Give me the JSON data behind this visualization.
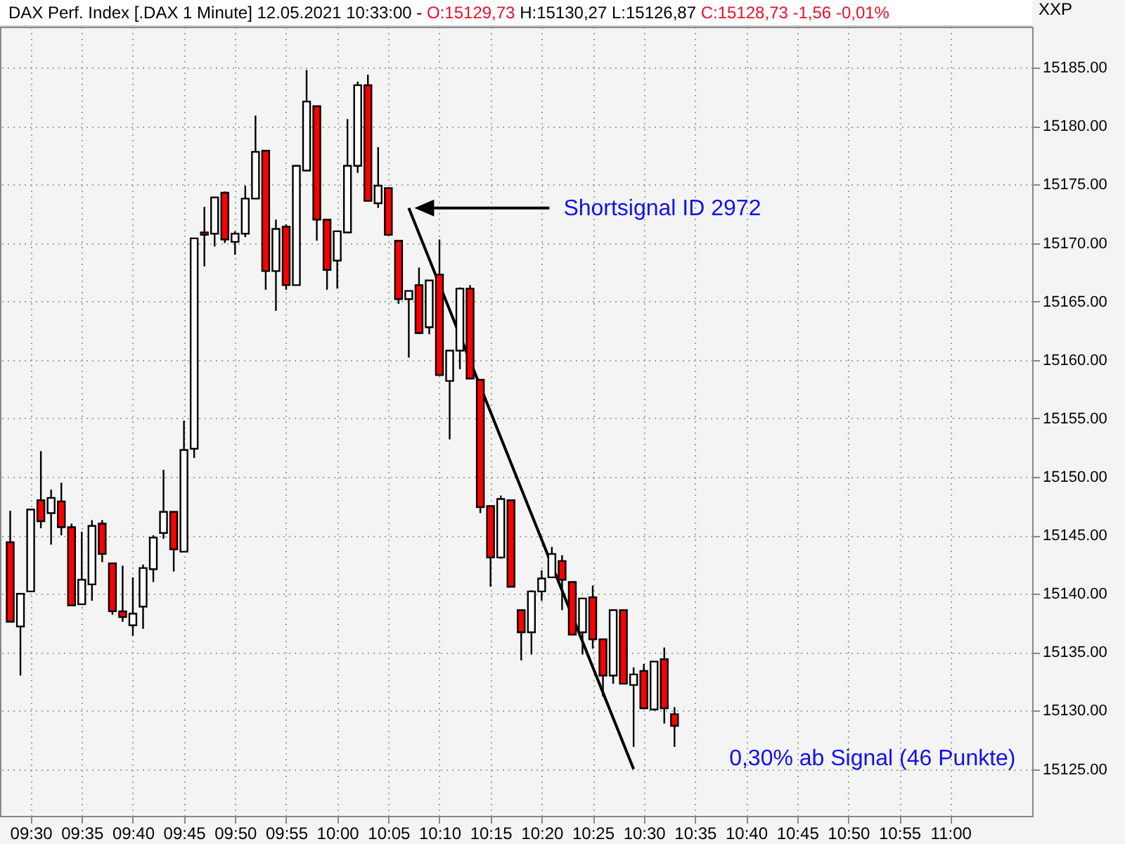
{
  "chart_data": {
    "type": "candlestick",
    "title": "DAX Perf. Index [.DAX  1 Minute] 12.05.2021 10:33:00 -",
    "subtitle": "O:15129,73 H:15130,27 L:15126,87 C:15128,73 -1,56 -0,01%",
    "ylabel": "XXP",
    "x": [
      "2021-05-12T09:28",
      "2021-05-12T09:29",
      "2021-05-12T09:30",
      "2021-05-12T09:31",
      "2021-05-12T09:32",
      "2021-05-12T09:33",
      "2021-05-12T09:34",
      "2021-05-12T09:35",
      "2021-05-12T09:36",
      "2021-05-12T09:37",
      "2021-05-12T09:38",
      "2021-05-12T09:39",
      "2021-05-12T09:40",
      "2021-05-12T09:41",
      "2021-05-12T09:42",
      "2021-05-12T09:43",
      "2021-05-12T09:44",
      "2021-05-12T09:45",
      "2021-05-12T09:46",
      "2021-05-12T09:47",
      "2021-05-12T09:48",
      "2021-05-12T09:49",
      "2021-05-12T09:50",
      "2021-05-12T09:51",
      "2021-05-12T09:52",
      "2021-05-12T09:53",
      "2021-05-12T09:54",
      "2021-05-12T09:55",
      "2021-05-12T09:56",
      "2021-05-12T09:57",
      "2021-05-12T09:58",
      "2021-05-12T09:59",
      "2021-05-12T10:00",
      "2021-05-12T10:01",
      "2021-05-12T10:02",
      "2021-05-12T10:03",
      "2021-05-12T10:04",
      "2021-05-12T10:05",
      "2021-05-12T10:06",
      "2021-05-12T10:07",
      "2021-05-12T10:08",
      "2021-05-12T10:09",
      "2021-05-12T10:10",
      "2021-05-12T10:11",
      "2021-05-12T10:12",
      "2021-05-12T10:13",
      "2021-05-12T10:14",
      "2021-05-12T10:15",
      "2021-05-12T10:16",
      "2021-05-12T10:17",
      "2021-05-12T10:18",
      "2021-05-12T10:19",
      "2021-05-12T10:20",
      "2021-05-12T10:21",
      "2021-05-12T10:22",
      "2021-05-12T10:23",
      "2021-05-12T10:24",
      "2021-05-12T10:25",
      "2021-05-12T10:26",
      "2021-05-12T10:27",
      "2021-05-12T10:28",
      "2021-05-12T10:29",
      "2021-05-12T10:30",
      "2021-05-12T10:31",
      "2021-05-12T10:32",
      "2021-05-12T10:33"
    ],
    "ohlc": [
      [
        15144.4,
        15147.1,
        15137.6,
        15137.6
      ],
      [
        15137.2,
        15140.0,
        15133.0,
        15140.0
      ],
      [
        15140.2,
        15147.2,
        15140.2,
        15147.2
      ],
      [
        15148.0,
        15152.2,
        15145.6,
        15146.2
      ],
      [
        15146.9,
        15148.9,
        15144.2,
        15148.2
      ],
      [
        15147.9,
        15149.5,
        15145.0,
        15145.7
      ],
      [
        15145.7,
        15146.0,
        15139.0,
        15139.0
      ],
      [
        15139.1,
        15145.3,
        15139.1,
        15141.2
      ],
      [
        15140.8,
        15146.3,
        15139.4,
        15145.8
      ],
      [
        15146.0,
        15146.3,
        15142.7,
        15143.4
      ],
      [
        15142.6,
        15142.6,
        15138.2,
        15138.5
      ],
      [
        15138.5,
        15142.4,
        15137.6,
        15138.0
      ],
      [
        15137.3,
        15141.4,
        15136.4,
        15138.3
      ],
      [
        15138.9,
        15142.5,
        15137.0,
        15142.2
      ],
      [
        15142.1,
        15145.0,
        15141.0,
        15144.8
      ],
      [
        15145.2,
        15150.6,
        15144.7,
        15147.0
      ],
      [
        15147.0,
        15147.0,
        15141.9,
        15143.8
      ],
      [
        15143.6,
        15154.8,
        15143.6,
        15152.3
      ],
      [
        15152.4,
        15170.4,
        15151.6,
        15170.4
      ],
      [
        15170.9,
        15173.1,
        15168.0,
        15170.7
      ],
      [
        15170.8,
        15173.9,
        15169.7,
        15173.9
      ],
      [
        15174.3,
        15174.4,
        15170.0,
        15170.3
      ],
      [
        15170.1,
        15171.0,
        15169.0,
        15170.8
      ],
      [
        15170.8,
        15174.9,
        15170.5,
        15173.8
      ],
      [
        15173.8,
        15180.9,
        15173.8,
        15177.8
      ],
      [
        15177.9,
        15177.9,
        15166.0,
        15167.6
      ],
      [
        15167.6,
        15172.0,
        15164.2,
        15171.2
      ],
      [
        15171.4,
        15171.6,
        15166.0,
        15166.4
      ],
      [
        15166.4,
        15176.6,
        15166.4,
        15176.6
      ],
      [
        15176.2,
        15184.8,
        15176.2,
        15182.1
      ],
      [
        15181.7,
        15181.7,
        15170.2,
        15172.0
      ],
      [
        15172.0,
        15172.0,
        15166.0,
        15167.7
      ],
      [
        15168.5,
        15171.0,
        15166.1,
        15171.0
      ],
      [
        15170.9,
        15180.6,
        15170.9,
        15176.6
      ],
      [
        15176.6,
        15183.8,
        15176.0,
        15183.5
      ],
      [
        15183.5,
        15184.4,
        15173.6,
        15173.6
      ],
      [
        15173.4,
        15178.2,
        15173.0,
        15174.9
      ],
      [
        15174.7,
        15174.7,
        15170.7,
        15170.7
      ],
      [
        15170.2,
        15170.2,
        15164.8,
        15165.2
      ],
      [
        15165.2,
        15165.9,
        15160.2,
        15165.9
      ],
      [
        15166.4,
        15167.9,
        15162.2,
        15162.3
      ],
      [
        15162.8,
        15166.8,
        15162.2,
        15166.8
      ],
      [
        15167.3,
        15170.3,
        15158.7,
        15158.7
      ],
      [
        15158.2,
        15160.8,
        15153.2,
        15160.8
      ],
      [
        15160.8,
        15166.2,
        15159.2,
        15166.1
      ],
      [
        15166.1,
        15166.4,
        15158.4,
        15158.4
      ],
      [
        15158.3,
        15158.3,
        15146.9,
        15147.4
      ],
      [
        15147.5,
        15147.5,
        15140.6,
        15143.1
      ],
      [
        15143.1,
        15148.4,
        15143.0,
        15148.1
      ],
      [
        15148.0,
        15148.0,
        15140.6,
        15140.6
      ],
      [
        15138.6,
        15138.6,
        15134.3,
        15136.7
      ],
      [
        15136.7,
        15140.3,
        15134.8,
        15140.2
      ],
      [
        15140.2,
        15142.0,
        15139.4,
        15141.3
      ],
      [
        15141.4,
        15144.0,
        15141.4,
        15143.4
      ],
      [
        15142.8,
        15143.3,
        15138.6,
        15141.2
      ],
      [
        15141.0,
        15141.0,
        15136.5,
        15136.5
      ],
      [
        15136.7,
        15139.6,
        15134.8,
        15139.6
      ],
      [
        15139.7,
        15140.7,
        15135.3,
        15136.1
      ],
      [
        15136.1,
        15136.1,
        15131.2,
        15133.0
      ],
      [
        15133.0,
        15138.6,
        15132.3,
        15138.6
      ],
      [
        15138.6,
        15138.6,
        15132.3,
        15132.3
      ],
      [
        15132.2,
        15133.7,
        15126.9,
        15133.1
      ],
      [
        15133.4,
        15134.0,
        15130.2,
        15130.2
      ],
      [
        15130.1,
        15134.2,
        15130.0,
        15134.2
      ],
      [
        15134.4,
        15135.4,
        15128.9,
        15130.2
      ],
      [
        15129.7,
        15130.3,
        15126.9,
        15128.7
      ]
    ],
    "colors": [
      "#ff0000",
      "#ffffff",
      "#ffffff",
      "#ff0000",
      "#ffffff",
      "#ff0000",
      "#ff0000",
      "#ffffff",
      "#ffffff",
      "#ff0000",
      "#ff0000",
      "#ff0000",
      "#ffffff",
      "#ffffff",
      "#ffffff",
      "#ffffff",
      "#ff0000",
      "#ffffff",
      "#ffffff",
      "#ff0000",
      "#ffffff",
      "#ff0000",
      "#ffffff",
      "#ffffff",
      "#ffffff",
      "#ff0000",
      "#ffffff",
      "#ff0000",
      "#ffffff",
      "#ffffff",
      "#ff0000",
      "#ff0000",
      "#ffffff",
      "#ffffff",
      "#ffffff",
      "#ff0000",
      "#ffffff",
      "#ff0000",
      "#ff0000",
      "#ffffff",
      "#ff0000",
      "#ffffff",
      "#ff0000",
      "#ffffff",
      "#ffffff",
      "#ff0000",
      "#ff0000",
      "#ff0000",
      "#ffffff",
      "#ff0000",
      "#ff0000",
      "#ffffff",
      "#ffffff",
      "#ffffff",
      "#ff0000",
      "#ff0000",
      "#ffffff",
      "#ff0000",
      "#ff0000",
      "#ffffff",
      "#ff0000",
      "#ffffff",
      "#ff0000",
      "#ffffff",
      "#ff0000",
      "#ff0000"
    ],
    "series": [
      {
        "type": "line",
        "color": "#000000",
        "x": [
          "2021-05-12T10:07",
          "2021-05-12T10:29"
        ],
        "values": [
          15173,
          15125
        ]
      }
    ],
    "annotations": [
      "Shortsignal ID 2972",
      "0,30% ab Signal (46 Punkte)"
    ],
    "xlim": [
      "2021-05-12T09:27",
      "2021-05-12T11:08"
    ],
    "xticks": [
      {
        "value": "2021-05-12T09:30",
        "label": "09:30"
      },
      {
        "value": "2021-05-12T09:35",
        "label": "09:35"
      },
      {
        "value": "2021-05-12T09:40",
        "label": "09:40"
      },
      {
        "value": "2021-05-12T09:45",
        "label": "09:45"
      },
      {
        "value": "2021-05-12T09:50",
        "label": "09:50"
      },
      {
        "value": "2021-05-12T09:55",
        "label": "09:55"
      },
      {
        "value": "2021-05-12T10:00",
        "label": "10:00"
      },
      {
        "value": "2021-05-12T10:05",
        "label": "10:05"
      },
      {
        "value": "2021-05-12T10:10",
        "label": "10:10"
      },
      {
        "value": "2021-05-12T10:15",
        "label": "10:15"
      },
      {
        "value": "2021-05-12T10:20",
        "label": "10:20"
      },
      {
        "value": "2021-05-12T10:25",
        "label": "10:25"
      },
      {
        "value": "2021-05-12T10:30",
        "label": "10:30"
      },
      {
        "value": "2021-05-12T10:35",
        "label": "10:35"
      },
      {
        "value": "2021-05-12T10:40",
        "label": "10:40"
      },
      {
        "value": "2021-05-12T10:45",
        "label": "10:45"
      },
      {
        "value": "2021-05-12T10:50",
        "label": "10:50"
      },
      {
        "value": "2021-05-12T10:55",
        "label": "10:55"
      },
      {
        "value": "2021-05-12T11:00",
        "label": "11:00"
      }
    ],
    "ylim": [
      15121,
      15188.5
    ],
    "yticks": [
      {
        "value": 15125,
        "label": "15125.00"
      },
      {
        "value": 15130,
        "label": "15130.00"
      },
      {
        "value": 15135,
        "label": "15135.00"
      },
      {
        "value": 15140,
        "label": "15140.00"
      },
      {
        "value": 15145,
        "label": "15145.00"
      },
      {
        "value": 15150,
        "label": "15150.00"
      },
      {
        "value": 15155,
        "label": "15155.00"
      },
      {
        "value": 15160,
        "label": "15160.00"
      },
      {
        "value": 15165,
        "label": "15165.00"
      },
      {
        "value": 15170,
        "label": "15170.00"
      },
      {
        "value": 15175,
        "label": "15175.00"
      },
      {
        "value": 15180,
        "label": "15180.00"
      },
      {
        "value": 15185,
        "label": "15185.00"
      }
    ],
    "grid": true,
    "marker": "none",
    "line_style": "solid"
  }
}
